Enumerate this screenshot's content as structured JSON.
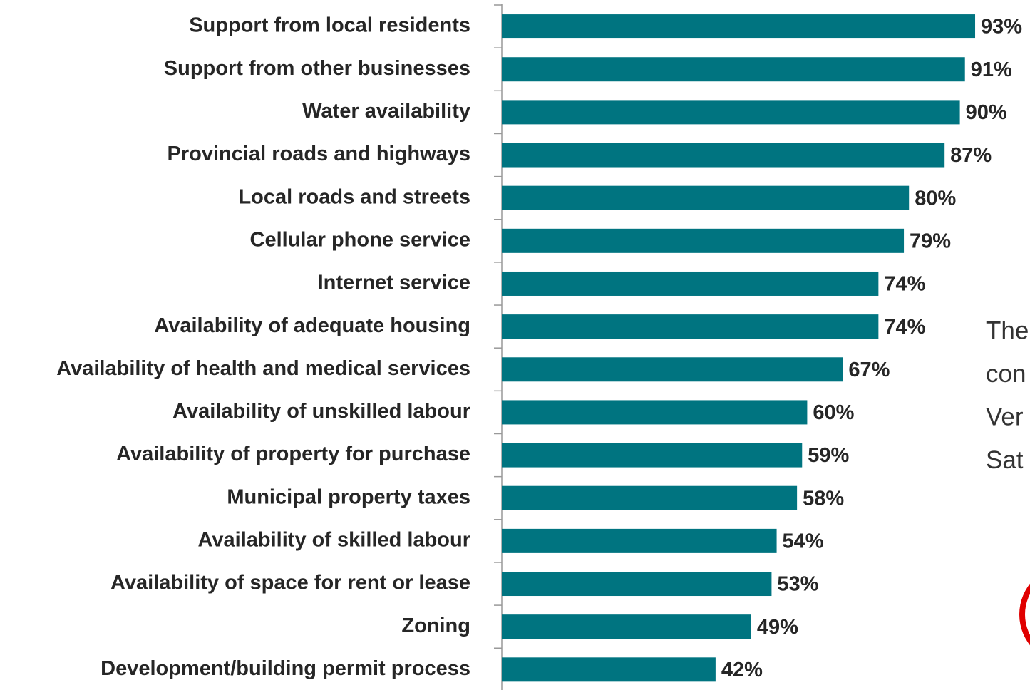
{
  "chart_data": {
    "type": "hbar",
    "categories": [
      "Support from local residents",
      "Support from other businesses",
      "Water availability",
      "Provincial roads and highways",
      "Local roads and streets",
      "Cellular phone service",
      "Internet service",
      "Availability of adequate housing",
      "Availability of health and medical services",
      "Availability of unskilled labour",
      "Availability of property for purchase",
      "Municipal property taxes",
      "Availability of skilled labour",
      "Availability of space for rent or lease",
      "Zoning",
      "Development/building permit process"
    ],
    "values": [
      93,
      91,
      90,
      87,
      80,
      79,
      74,
      74,
      67,
      60,
      59,
      58,
      54,
      53,
      49,
      42
    ],
    "value_labels": [
      "93%",
      "91%",
      "90%",
      "87%",
      "80%",
      "79%",
      "74%",
      "74%",
      "67%",
      "60%",
      "59%",
      "58%",
      "54%",
      "53%",
      "49%",
      "42%"
    ],
    "color": "#007480",
    "xlim": [
      0,
      100
    ],
    "annotation_lines": [
      "The",
      "con",
      "Ver",
      "Sat"
    ]
  }
}
